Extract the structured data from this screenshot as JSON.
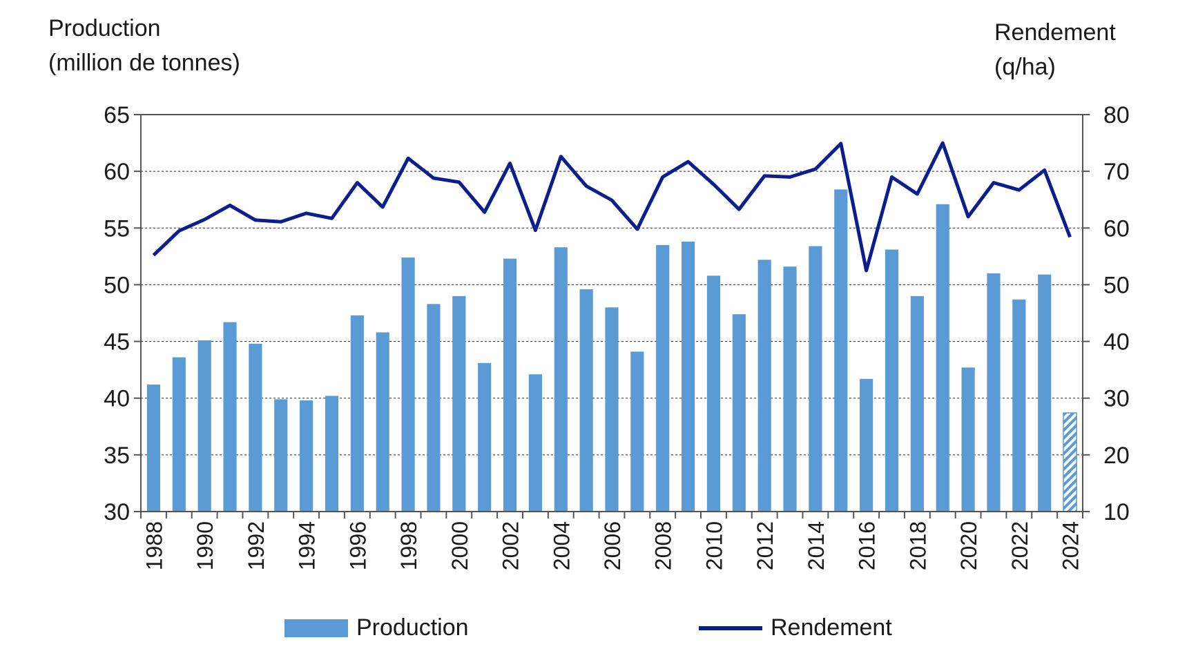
{
  "left_axis_title_line1": "Production",
  "left_axis_title_line2": "(million de tonnes)",
  "right_axis_title_line1": "Rendement",
  "right_axis_title_line2": "(q/ha)",
  "chart_data": {
    "type": "bar",
    "categories": [
      1988,
      1989,
      1990,
      1991,
      1992,
      1993,
      1994,
      1995,
      1996,
      1997,
      1998,
      1999,
      2000,
      2001,
      2002,
      2003,
      2004,
      2005,
      2006,
      2007,
      2008,
      2009,
      2010,
      2011,
      2012,
      2013,
      2014,
      2015,
      2016,
      2017,
      2018,
      2019,
      2020,
      2021,
      2022,
      2023,
      2024
    ],
    "x_tick_labels": [
      "1988",
      "1990",
      "1992",
      "1994",
      "1996",
      "1998",
      "2000",
      "2002",
      "2004",
      "2006",
      "2008",
      "2010",
      "2012",
      "2014",
      "2016",
      "2018",
      "2020",
      "2022",
      "2024"
    ],
    "series": [
      {
        "name": "Production",
        "type": "bar",
        "axis": "left",
        "color": "#5b9bd5",
        "values": [
          41.2,
          43.6,
          45.1,
          46.7,
          44.8,
          39.9,
          39.8,
          40.2,
          47.3,
          45.8,
          52.4,
          48.3,
          49.0,
          43.1,
          52.3,
          42.1,
          53.3,
          49.6,
          48.0,
          44.1,
          53.5,
          53.8,
          50.8,
          47.4,
          52.2,
          51.6,
          53.4,
          58.4,
          41.7,
          53.1,
          49.0,
          57.1,
          42.7,
          51.0,
          48.7,
          50.9,
          38.7
        ],
        "hatched_last": true
      },
      {
        "name": "Rendement",
        "type": "line",
        "axis": "right",
        "color": "#0a1e8c",
        "values": [
          55.2,
          59.5,
          61.5,
          64.0,
          61.4,
          61.1,
          62.6,
          61.7,
          68.0,
          63.7,
          72.3,
          68.8,
          68.1,
          62.8,
          71.4,
          59.6,
          72.6,
          67.4,
          64.9,
          59.8,
          69.0,
          71.7,
          67.7,
          63.3,
          69.2,
          69.0,
          70.4,
          74.9,
          52.5,
          69.0,
          66.0,
          75.0,
          62.0,
          68.0,
          66.7,
          70.2,
          58.4
        ]
      }
    ],
    "left_axis": {
      "min": 30,
      "max": 65,
      "ticks": [
        30,
        35,
        40,
        45,
        50,
        55,
        60,
        65
      ]
    },
    "right_axis": {
      "min": 10,
      "max": 80,
      "ticks": [
        10,
        20,
        30,
        40,
        50,
        60,
        70,
        80
      ]
    },
    "grid": true,
    "legend_position": "bottom"
  }
}
